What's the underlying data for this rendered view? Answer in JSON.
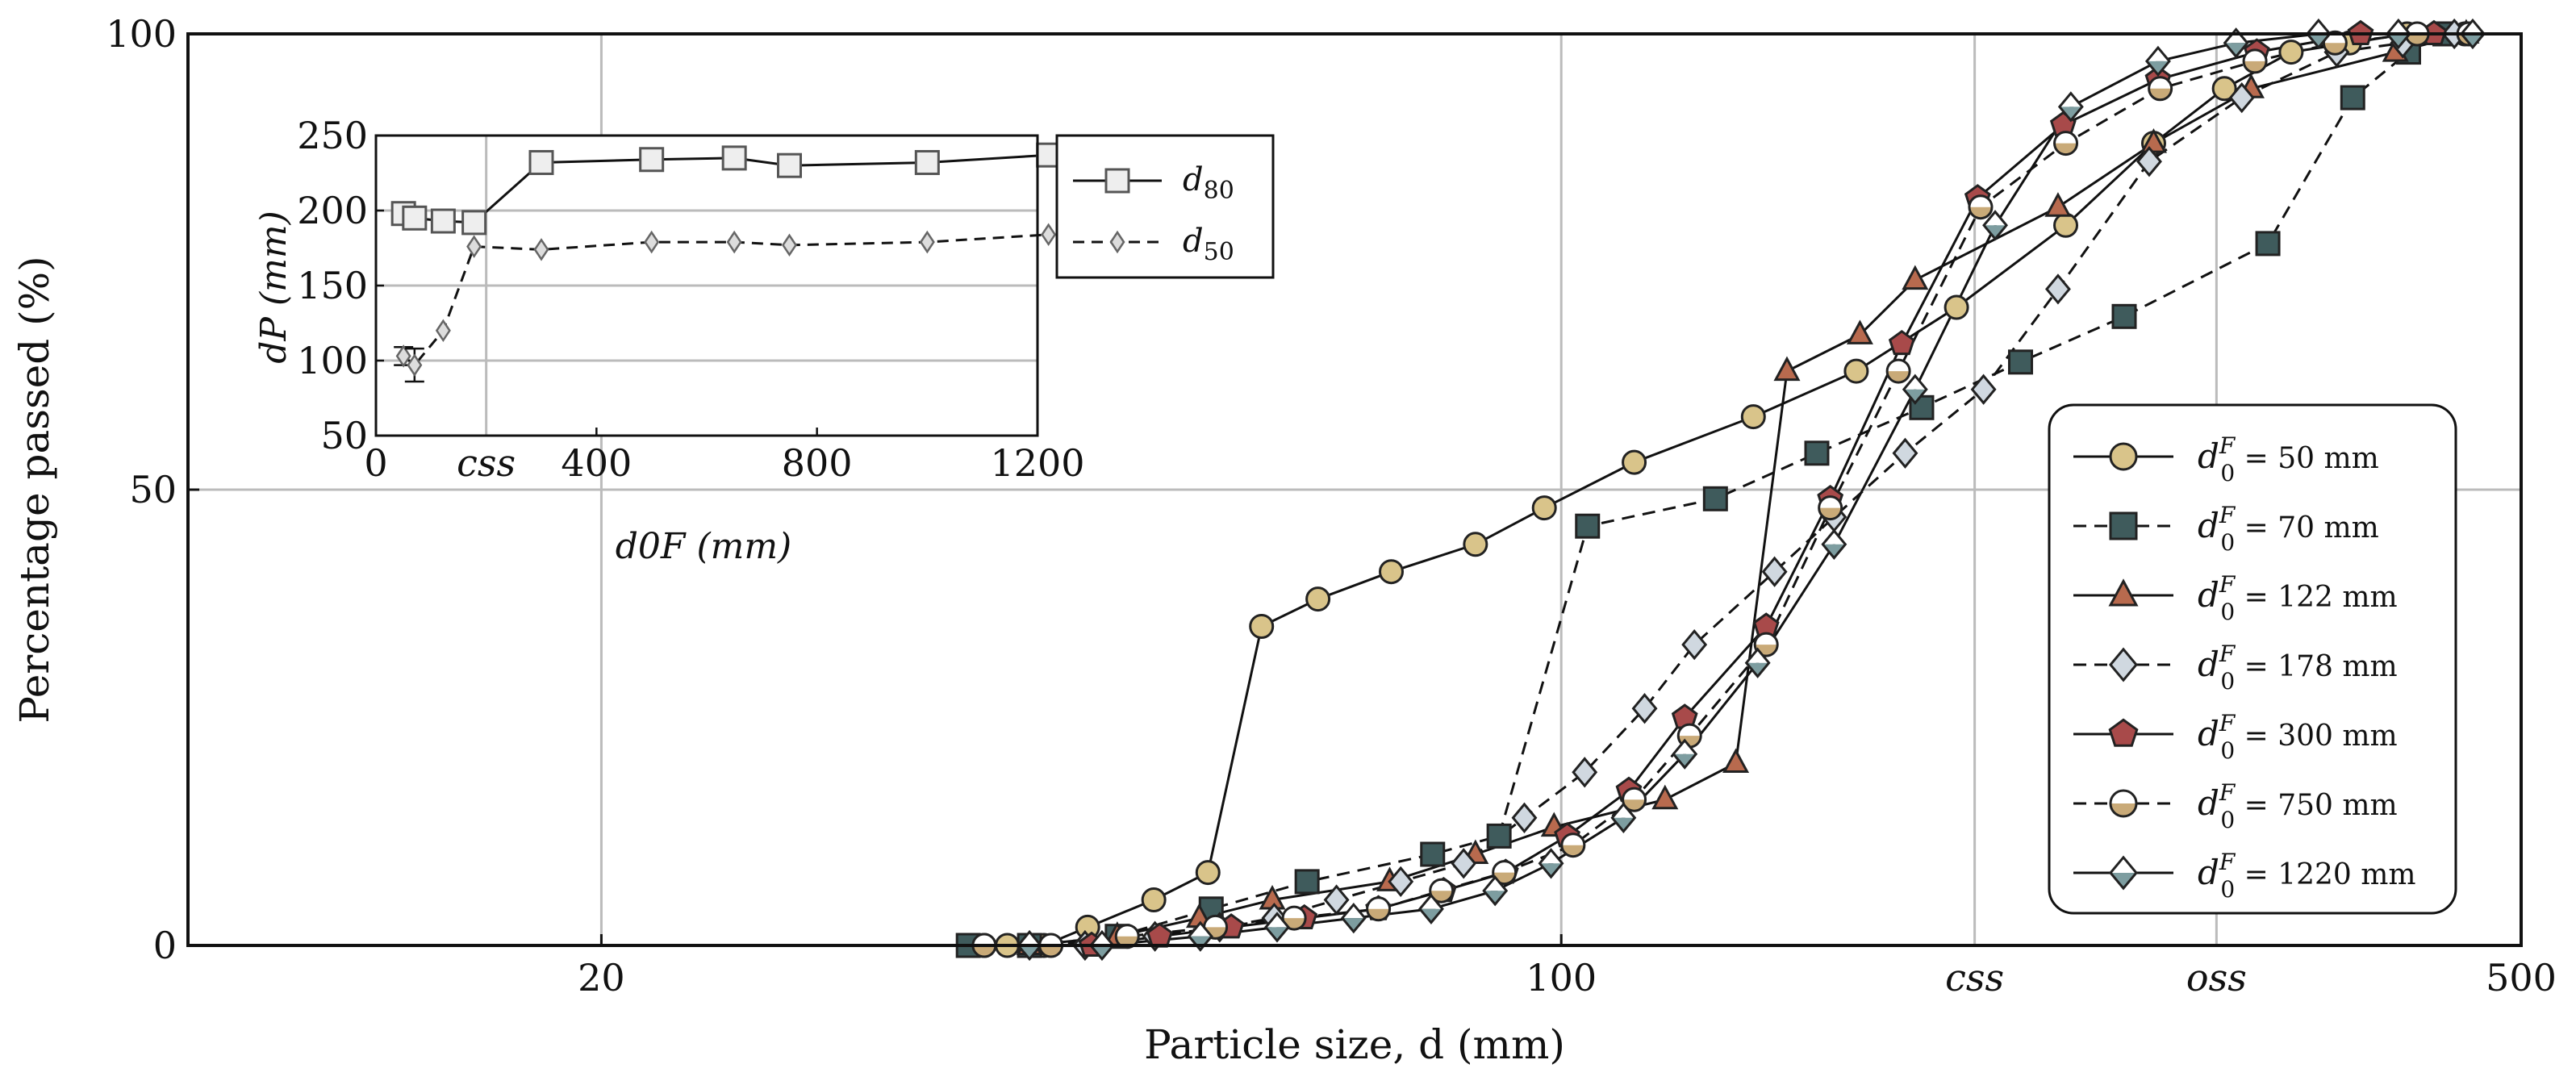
{
  "chart_data": [
    {
      "type": "line",
      "title": "",
      "xlabel": "Particle size, d (mm)",
      "ylabel": "Percentage passed (%)",
      "xscale": "log",
      "xlim": [
        10,
        500
      ],
      "ylim": [
        0,
        100
      ],
      "x_ticks": [
        {
          "value": 20,
          "label": "20"
        },
        {
          "value": 100,
          "label": "100"
        },
        {
          "value": 500,
          "label": "500"
        }
      ],
      "y_ticks": [
        {
          "value": 0,
          "label": "0"
        },
        {
          "value": 50,
          "label": "50"
        },
        {
          "value": 100,
          "label": "100"
        }
      ],
      "annotations": [
        {
          "x": 200,
          "text": "css"
        },
        {
          "x": 300,
          "text": "oss"
        }
      ],
      "grid": true,
      "legend_position": "right",
      "series": [
        {
          "name": "d0F = 50 mm",
          "legend_prefix": "d",
          "legend_suffix": " = 50 mm",
          "marker": "circle",
          "fill": "#d9c48a",
          "dash": "solid",
          "x": [
            38.0,
            39.5,
            42.0,
            45.2,
            50.5,
            55.3,
            60.5,
            66.5,
            75.2,
            86.6,
            97.2,
            113.0,
            138.0,
            164.0,
            194.0,
            233.0,
            270.0,
            304.0,
            340.0,
            375.0,
            413.0,
            455.0
          ],
          "y": [
            0,
            0,
            0,
            2,
            5,
            8,
            35,
            38,
            41,
            44,
            48,
            53,
            58,
            63,
            70,
            79,
            88,
            94,
            98,
            99,
            100,
            100
          ]
        },
        {
          "name": "d0F = 70 mm",
          "legend_prefix": "d",
          "legend_suffix": " = 70 mm",
          "marker": "square",
          "fill": "#3f5b5c",
          "dash": "dashed",
          "x": [
            37.0,
            41.0,
            47.5,
            55.6,
            65.3,
            80.6,
            90.1,
            104.5,
            129.5,
            153.5,
            183.0,
            216.0,
            257.0,
            327.0,
            377.0,
            414.0,
            440.0
          ],
          "y": [
            0,
            0,
            1,
            4,
            7,
            10,
            12,
            46,
            49,
            54,
            59,
            64,
            69,
            77,
            93,
            98,
            100
          ]
        },
        {
          "name": "d0F = 122 mm",
          "legend_prefix": "d",
          "legend_suffix": " = 122 mm",
          "marker": "triangle",
          "fill": "#b86a4e",
          "dash": "solid",
          "x": [
            41.0,
            47.5,
            54.5,
            61.6,
            75.0,
            86.6,
            98.8,
            119.0,
            134.0,
            146.0,
            165.0,
            181.0,
            230.0,
            270.0,
            318.0,
            405.0,
            456.0
          ],
          "y": [
            0,
            1,
            3,
            5,
            7,
            10,
            13,
            16,
            20,
            63,
            67,
            73,
            81,
            88,
            94,
            98,
            100
          ]
        },
        {
          "name": "d0F = 178 mm",
          "legend_prefix": "d",
          "legend_suffix": " = 178 mm",
          "marker": "diamond",
          "fill": "#d0d8e0",
          "dash": "dashed",
          "x": [
            45.0,
            50.6,
            56.4,
            61.8,
            68.6,
            76.4,
            84.9,
            94.0,
            104.0,
            115.0,
            125.0,
            143.0,
            158.0,
            178.0,
            203.0,
            230.0,
            268.0,
            313.0,
            367.0,
            410.0,
            447.0
          ],
          "y": [
            0,
            1,
            2,
            3,
            5,
            7,
            9,
            14,
            19,
            26,
            33,
            41,
            47,
            54,
            61,
            72,
            86,
            93,
            98,
            99,
            100
          ]
        },
        {
          "name": "d0F = 300 mm",
          "legend_prefix": "d",
          "legend_suffix": " = 300 mm",
          "marker": "pentagon",
          "fill": "#a84a4a",
          "dash": "solid",
          "x": [
            45.5,
            51.0,
            57.5,
            65.0,
            73.6,
            82.1,
            91.1,
            101.0,
            112.0,
            123.0,
            141.0,
            157.0,
            177.0,
            201.0,
            232.0,
            272.0,
            321.0,
            382.0,
            432.0
          ],
          "y": [
            0,
            1,
            2,
            3,
            4,
            6,
            8,
            12,
            17,
            25,
            35,
            49,
            66,
            82,
            90,
            95,
            98,
            100,
            100
          ]
        },
        {
          "name": "d0F = 750 mm",
          "legend_prefix": "d",
          "legend_suffix": " = 750 mm",
          "marker": "halfcircle",
          "fill": "#c9aa78",
          "dash": "dashed",
          "x": [
            38.0,
            42.5,
            48.3,
            56.0,
            63.9,
            73.6,
            81.8,
            90.9,
            102.0,
            113.0,
            124.0,
            141.0,
            157.0,
            176.0,
            202.0,
            233.0,
            273.0,
            320.0,
            366.0,
            420.0,
            458.0
          ],
          "y": [
            0,
            0,
            1,
            2,
            3,
            4,
            6,
            8,
            11,
            16,
            23,
            33,
            48,
            63,
            81,
            88,
            94,
            97,
            99,
            100,
            100
          ]
        },
        {
          "name": "d0F = 1220 mm",
          "legend_prefix": "d",
          "legend_suffix": " = 1220 mm",
          "marker": "halfdiamond",
          "fill": "#7d9da0",
          "dash": "solid",
          "x": [
            41.0,
            46.3,
            54.6,
            62.1,
            70.6,
            80.4,
            89.5,
            98.3,
            111.0,
            123.0,
            139.0,
            158.0,
            181.0,
            207.0,
            235.0,
            272.0,
            310.0,
            356.0,
            407.0,
            461.0
          ],
          "y": [
            0,
            0,
            1,
            2,
            3,
            4,
            6,
            9,
            14,
            21,
            31,
            44,
            61,
            79,
            92,
            97,
            99,
            100,
            100,
            100
          ]
        }
      ]
    },
    {
      "type": "line",
      "title": "",
      "inset": true,
      "xlabel": "d0F (mm)",
      "ylabel": "dP (mm)",
      "xlim": [
        0,
        1200
      ],
      "ylim": [
        50,
        250
      ],
      "x_ticks": [
        {
          "value": 0,
          "label": "0"
        },
        {
          "value": 400,
          "label": "400"
        },
        {
          "value": 800,
          "label": "800"
        },
        {
          "value": 1200,
          "label": "1200"
        }
      ],
      "y_ticks": [
        {
          "value": 50,
          "label": "50"
        },
        {
          "value": 100,
          "label": "100"
        },
        {
          "value": 150,
          "label": "150"
        },
        {
          "value": 200,
          "label": "200"
        },
        {
          "value": 250,
          "label": "250"
        }
      ],
      "annotations": [
        {
          "x": 200,
          "text": "css"
        }
      ],
      "grid": true,
      "legend_position": "right",
      "series": [
        {
          "name": "d80",
          "legend_base": "d",
          "legend_sub": "80",
          "marker": "square",
          "dash": "solid",
          "x": [
            50,
            70,
            122,
            178,
            300,
            500,
            650,
            750,
            1000,
            1220
          ],
          "y": [
            198,
            195,
            193,
            192,
            232,
            234,
            235,
            230,
            232,
            237
          ]
        },
        {
          "name": "d50",
          "legend_base": "d",
          "legend_sub": "50",
          "marker": "diamond",
          "dash": "dashed",
          "x": [
            50,
            70,
            122,
            178,
            300,
            500,
            650,
            750,
            1000,
            1220
          ],
          "y": [
            103,
            97,
            120,
            176,
            174,
            179,
            179,
            177,
            179,
            184
          ],
          "error": [
            6,
            11,
            0,
            0,
            0,
            0,
            0,
            0,
            0,
            0
          ]
        }
      ]
    }
  ]
}
